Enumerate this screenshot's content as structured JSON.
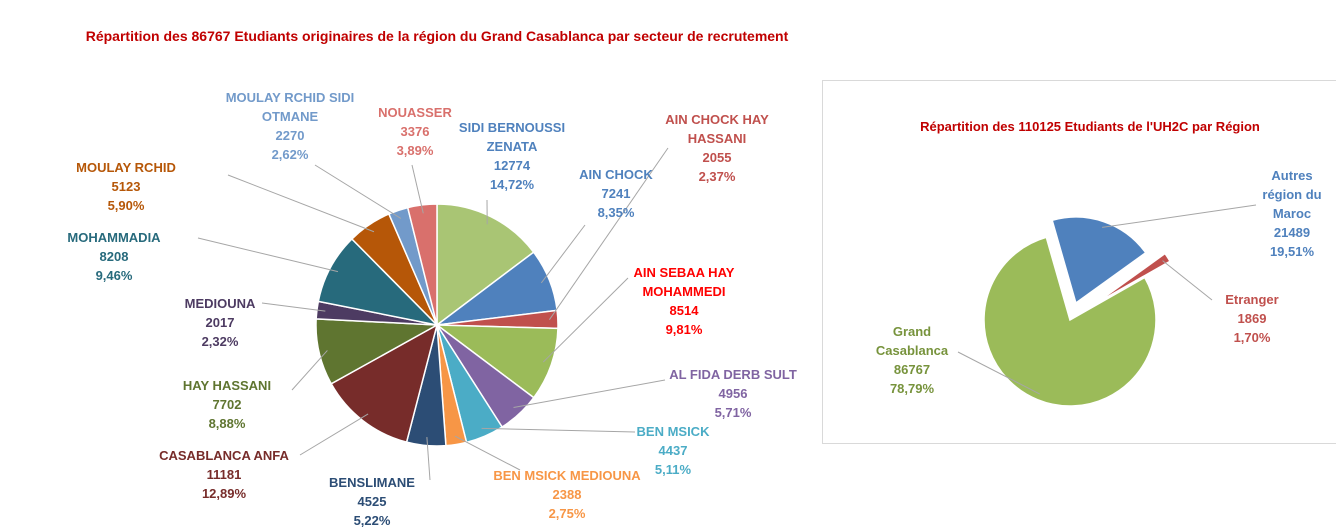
{
  "chart_data": [
    {
      "type": "pie",
      "title": "Répartition des 86767 Etudiants originaires de la région du Grand Casablanca par secteur de recrutement",
      "categories": [
        "SIDI BERNOUSSI ZENATA",
        "AIN CHOCK",
        "AIN CHOCK HAY HASSANI",
        "AIN SEBAA HAY MOHAMMEDI",
        "AL FIDA DERB SULT",
        "BEN MSICK",
        "BEN MSICK MEDIOUNA",
        "BENSLIMANE",
        "CASABLANCA ANFA",
        "HAY HASSANI",
        "MEDIOUNA",
        "MOHAMMADIA",
        "MOULAY RCHID",
        "MOULAY RCHID SIDI OTMANE",
        "NOUASSER"
      ],
      "values": [
        12774,
        7241,
        2055,
        8514,
        4956,
        4437,
        2388,
        4525,
        11181,
        7702,
        2017,
        8208,
        5123,
        2270,
        3376
      ],
      "percent_labels": [
        "14,72%",
        "8,35%",
        "2,37%",
        "9,81%",
        "5,71%",
        "5,11%",
        "2,75%",
        "5,22%",
        "12,89%",
        "8,88%",
        "2,32%",
        "9,46%",
        "5,90%",
        "2,62%",
        "3,89%"
      ],
      "colors": [
        "#a9c574",
        "#4f81bd",
        "#c0504d",
        "#9bbb59",
        "#8064a2",
        "#4bacc6",
        "#f79646",
        "#2c4d75",
        "#772c2a",
        "#5f7530",
        "#4d3b62",
        "#276a7c",
        "#b65708",
        "#729aca",
        "#d9706c"
      ],
      "label_colors": [
        "#4f81bd",
        "#4f81bd",
        "#c0504d",
        "#ff0000",
        "#8064a2",
        "#4bacc6",
        "#f79646",
        "#2c4d75",
        "#772c2a",
        "#5f7530",
        "#4d3b62",
        "#276a7c",
        "#b65708",
        "#729aca",
        "#d9706c"
      ]
    },
    {
      "type": "pie",
      "title": "Répartition des 110125 Etudiants de l'UH2C par Région",
      "categories": [
        "Autres région du Maroc",
        "Etranger",
        "Grand Casablanca"
      ],
      "values": [
        21489,
        1869,
        86767
      ],
      "percent_labels": [
        "19,51%",
        "1,70%",
        "78,79%"
      ],
      "colors": [
        "#4f81bd",
        "#c0504d",
        "#9bbb59"
      ],
      "label_colors": [
        "#4f81bd",
        "#c0504d",
        "#77933c"
      ]
    }
  ]
}
